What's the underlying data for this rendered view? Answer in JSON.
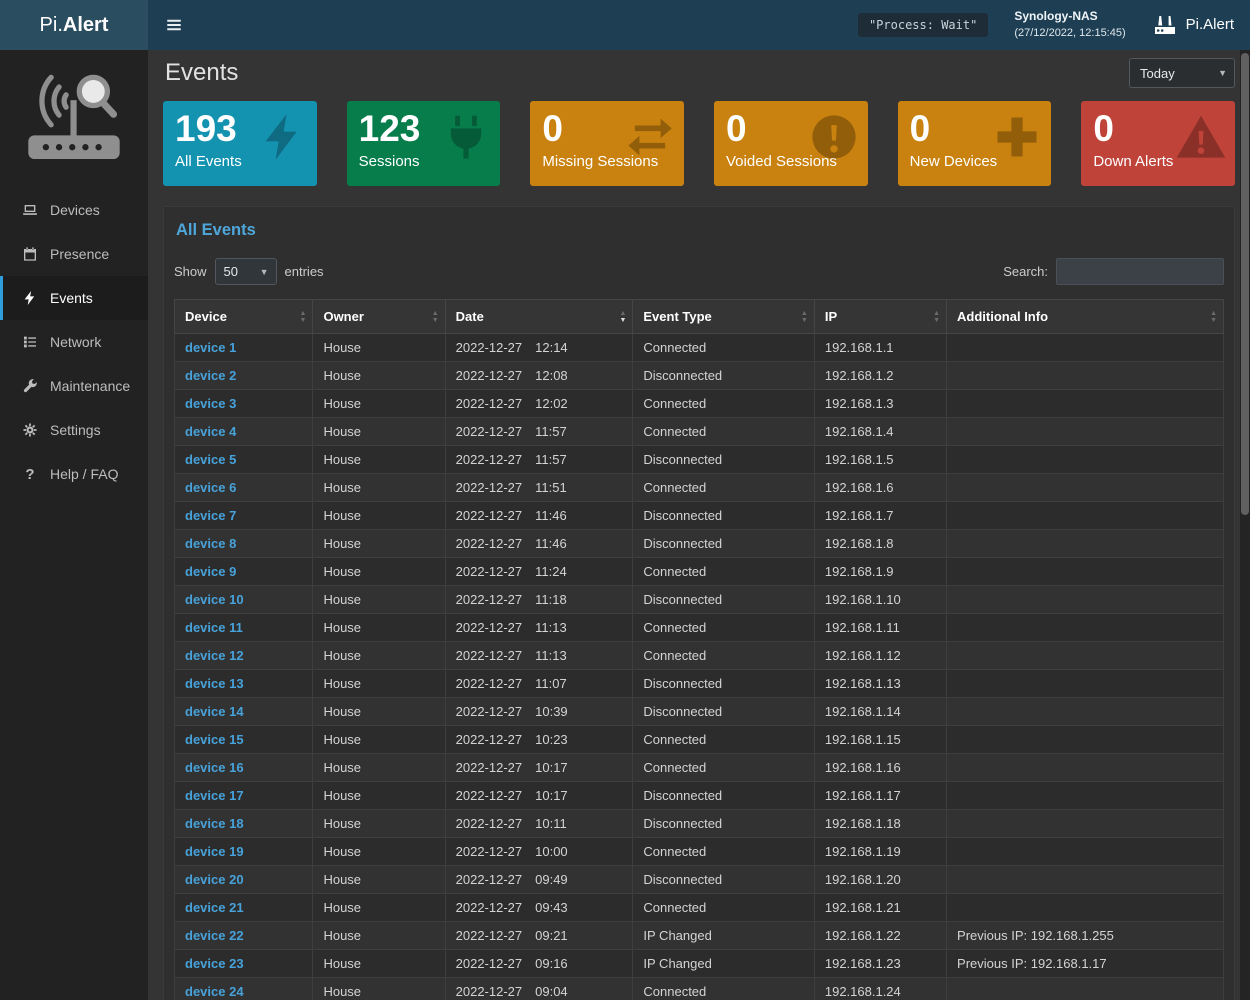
{
  "topbar": {
    "logo_prefix": "Pi.",
    "logo_suffix": "Alert",
    "process_badge": "\"Process: Wait\"",
    "nas_name": "Synology-NAS",
    "nas_time": "(27/12/2022, 12:15:45)",
    "brand": "Pi.Alert"
  },
  "sidebar": {
    "items": [
      {
        "label": "Devices",
        "icon": "laptop-icon",
        "active": false
      },
      {
        "label": "Presence",
        "icon": "calendar-icon",
        "active": false
      },
      {
        "label": "Events",
        "icon": "bolt-icon",
        "active": true
      },
      {
        "label": "Network",
        "icon": "network-icon",
        "active": false
      },
      {
        "label": "Maintenance",
        "icon": "wrench-icon",
        "active": false
      },
      {
        "label": "Settings",
        "icon": "gear-icon",
        "active": false
      },
      {
        "label": "Help / FAQ",
        "icon": "question-icon",
        "active": false
      }
    ]
  },
  "page": {
    "title": "Events",
    "period_select": {
      "value": "Today"
    }
  },
  "cards": [
    {
      "value": "193",
      "label": "All Events",
      "color": "#1493b1",
      "icon": "bolt-icon"
    },
    {
      "value": "123",
      "label": "Sessions",
      "color": "#077d4c",
      "icon": "plug-icon"
    },
    {
      "value": "0",
      "label": "Missing Sessions",
      "color": "#c9820f",
      "icon": "exchange-icon"
    },
    {
      "value": "0",
      "label": "Voided Sessions",
      "color": "#c9820f",
      "icon": "exclamation-circle-icon"
    },
    {
      "value": "0",
      "label": "New Devices",
      "color": "#c9820f",
      "icon": "plus-icon"
    },
    {
      "value": "0",
      "label": "Down Alerts",
      "color": "#bf4339",
      "icon": "warning-triangle-icon"
    }
  ],
  "table": {
    "title": "All Events",
    "show_label": "Show",
    "page_length": "50",
    "entries_label": "entries",
    "search_label": "Search:",
    "columns": [
      "Device",
      "Owner",
      "Date",
      "Event Type",
      "IP",
      "Additional Info"
    ],
    "sorted_column_index": 2,
    "sort_direction": "desc",
    "rows": [
      {
        "device": "device 1",
        "owner": "House",
        "date": "2022-12-27",
        "time": "12:14",
        "event_type": "Connected",
        "ip": "192.168.1.1",
        "additional_info": ""
      },
      {
        "device": "device 2",
        "owner": "House",
        "date": "2022-12-27",
        "time": "12:08",
        "event_type": "Disconnected",
        "ip": "192.168.1.2",
        "additional_info": ""
      },
      {
        "device": "device 3",
        "owner": "House",
        "date": "2022-12-27",
        "time": "12:02",
        "event_type": "Connected",
        "ip": "192.168.1.3",
        "additional_info": ""
      },
      {
        "device": "device 4",
        "owner": "House",
        "date": "2022-12-27",
        "time": "11:57",
        "event_type": "Connected",
        "ip": "192.168.1.4",
        "additional_info": ""
      },
      {
        "device": "device 5",
        "owner": "House",
        "date": "2022-12-27",
        "time": "11:57",
        "event_type": "Disconnected",
        "ip": "192.168.1.5",
        "additional_info": ""
      },
      {
        "device": "device 6",
        "owner": "House",
        "date": "2022-12-27",
        "time": "11:51",
        "event_type": "Connected",
        "ip": "192.168.1.6",
        "additional_info": ""
      },
      {
        "device": "device 7",
        "owner": "House",
        "date": "2022-12-27",
        "time": "11:46",
        "event_type": "Disconnected",
        "ip": "192.168.1.7",
        "additional_info": ""
      },
      {
        "device": "device 8",
        "owner": "House",
        "date": "2022-12-27",
        "time": "11:46",
        "event_type": "Disconnected",
        "ip": "192.168.1.8",
        "additional_info": ""
      },
      {
        "device": "device 9",
        "owner": "House",
        "date": "2022-12-27",
        "time": "11:24",
        "event_type": "Connected",
        "ip": "192.168.1.9",
        "additional_info": ""
      },
      {
        "device": "device 10",
        "owner": "House",
        "date": "2022-12-27",
        "time": "11:18",
        "event_type": "Disconnected",
        "ip": "192.168.1.10",
        "additional_info": ""
      },
      {
        "device": "device 11",
        "owner": "House",
        "date": "2022-12-27",
        "time": "11:13",
        "event_type": "Connected",
        "ip": "192.168.1.11",
        "additional_info": ""
      },
      {
        "device": "device 12",
        "owner": "House",
        "date": "2022-12-27",
        "time": "11:13",
        "event_type": "Connected",
        "ip": "192.168.1.12",
        "additional_info": ""
      },
      {
        "device": "device 13",
        "owner": "House",
        "date": "2022-12-27",
        "time": "11:07",
        "event_type": "Disconnected",
        "ip": "192.168.1.13",
        "additional_info": ""
      },
      {
        "device": "device 14",
        "owner": "House",
        "date": "2022-12-27",
        "time": "10:39",
        "event_type": "Disconnected",
        "ip": "192.168.1.14",
        "additional_info": ""
      },
      {
        "device": "device 15",
        "owner": "House",
        "date": "2022-12-27",
        "time": "10:23",
        "event_type": "Connected",
        "ip": "192.168.1.15",
        "additional_info": ""
      },
      {
        "device": "device 16",
        "owner": "House",
        "date": "2022-12-27",
        "time": "10:17",
        "event_type": "Connected",
        "ip": "192.168.1.16",
        "additional_info": ""
      },
      {
        "device": "device 17",
        "owner": "House",
        "date": "2022-12-27",
        "time": "10:17",
        "event_type": "Disconnected",
        "ip": "192.168.1.17",
        "additional_info": ""
      },
      {
        "device": "device 18",
        "owner": "House",
        "date": "2022-12-27",
        "time": "10:11",
        "event_type": "Disconnected",
        "ip": "192.168.1.18",
        "additional_info": ""
      },
      {
        "device": "device 19",
        "owner": "House",
        "date": "2022-12-27",
        "time": "10:00",
        "event_type": "Connected",
        "ip": "192.168.1.19",
        "additional_info": ""
      },
      {
        "device": "device 20",
        "owner": "House",
        "date": "2022-12-27",
        "time": "09:49",
        "event_type": "Disconnected",
        "ip": "192.168.1.20",
        "additional_info": ""
      },
      {
        "device": "device 21",
        "owner": "House",
        "date": "2022-12-27",
        "time": "09:43",
        "event_type": "Connected",
        "ip": "192.168.1.21",
        "additional_info": ""
      },
      {
        "device": "device 22",
        "owner": "House",
        "date": "2022-12-27",
        "time": "09:21",
        "event_type": "IP Changed",
        "ip": "192.168.1.22",
        "additional_info": "Previous IP: 192.168.1.255"
      },
      {
        "device": "device 23",
        "owner": "House",
        "date": "2022-12-27",
        "time": "09:16",
        "event_type": "IP Changed",
        "ip": "192.168.1.23",
        "additional_info": "Previous IP: 192.168.1.17"
      },
      {
        "device": "device 24",
        "owner": "House",
        "date": "2022-12-27",
        "time": "09:04",
        "event_type": "Connected",
        "ip": "192.168.1.24",
        "additional_info": ""
      }
    ]
  }
}
